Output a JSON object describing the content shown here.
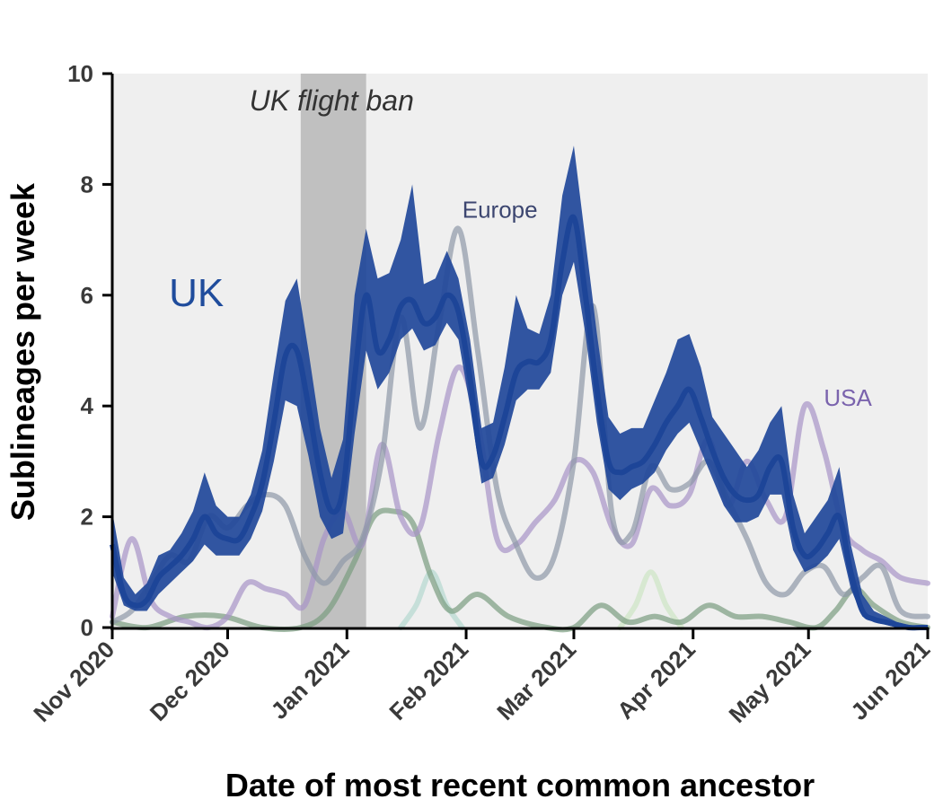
{
  "chart_data": {
    "type": "area",
    "xlabel": "Date of most recent common ancestor",
    "ylabel": "Sublineages per week",
    "xlim": [
      "2020-11-01",
      "2021-06-01"
    ],
    "ylim": [
      0,
      10
    ],
    "yticks": [
      0,
      2,
      4,
      6,
      8,
      10
    ],
    "xticks": [
      {
        "date": "2020-11-01",
        "label": "Nov 2020"
      },
      {
        "date": "2020-12-01",
        "label": "Dec 2020"
      },
      {
        "date": "2021-01-01",
        "label": "Jan 2021"
      },
      {
        "date": "2021-02-01",
        "label": "Feb 2021"
      },
      {
        "date": "2021-03-01",
        "label": "Mar 2021"
      },
      {
        "date": "2021-04-01",
        "label": "Apr 2021"
      },
      {
        "date": "2021-05-01",
        "label": "May 2021"
      },
      {
        "date": "2021-06-01",
        "label": "Jun 2021"
      }
    ],
    "grid": false,
    "background": "#efefef",
    "shaded_region": {
      "start": "2020-12-20",
      "end": "2021-01-06",
      "label": "UK flight ban",
      "color": "#c0c0c0"
    },
    "annotations": [
      {
        "text": "UK",
        "series": "UK",
        "date": "2020-11-30",
        "y": 5.8
      },
      {
        "text": "Europe",
        "series": "Europe",
        "date": "2021-01-31",
        "y": 7.4
      },
      {
        "text": "USA",
        "series": "USA",
        "date": "2021-05-05",
        "y": 4.0
      }
    ],
    "series": [
      {
        "name": "UK",
        "color": "#1f4c9c",
        "band_color": "#21489a",
        "x": [
          "2020-11-01",
          "2020-11-04",
          "2020-11-07",
          "2020-11-10",
          "2020-11-13",
          "2020-11-16",
          "2020-11-19",
          "2020-11-22",
          "2020-11-25",
          "2020-11-28",
          "2020-12-01",
          "2020-12-04",
          "2020-12-07",
          "2020-12-10",
          "2020-12-13",
          "2020-12-16",
          "2020-12-19",
          "2020-12-22",
          "2020-12-25",
          "2020-12-28",
          "2020-12-31",
          "2021-01-03",
          "2021-01-06",
          "2021-01-09",
          "2021-01-12",
          "2021-01-15",
          "2021-01-18",
          "2021-01-21",
          "2021-01-24",
          "2021-01-27",
          "2021-01-30",
          "2021-02-02",
          "2021-02-05",
          "2021-02-08",
          "2021-02-11",
          "2021-02-14",
          "2021-02-17",
          "2021-02-20",
          "2021-02-23",
          "2021-02-26",
          "2021-03-01",
          "2021-03-04",
          "2021-03-07",
          "2021-03-10",
          "2021-03-13",
          "2021-03-16",
          "2021-03-19",
          "2021-03-22",
          "2021-03-25",
          "2021-03-28",
          "2021-03-31",
          "2021-04-03",
          "2021-04-06",
          "2021-04-09",
          "2021-04-12",
          "2021-04-15",
          "2021-04-18",
          "2021-04-21",
          "2021-04-24",
          "2021-04-27",
          "2021-04-30",
          "2021-05-03",
          "2021-05-06",
          "2021-05-09",
          "2021-05-12",
          "2021-05-15",
          "2021-05-18",
          "2021-05-21",
          "2021-05-24",
          "2021-05-27",
          "2021-05-30",
          "2021-06-01"
        ],
        "y": [
          1.5,
          0.6,
          0.4,
          0.5,
          0.9,
          1.1,
          1.3,
          1.6,
          2.0,
          1.7,
          1.6,
          1.6,
          2.0,
          2.6,
          3.7,
          4.9,
          5.0,
          4.0,
          2.8,
          2.1,
          2.5,
          4.5,
          6.0,
          5.0,
          5.2,
          5.8,
          5.9,
          5.5,
          5.6,
          6.0,
          5.7,
          4.5,
          3.0,
          3.1,
          3.8,
          4.6,
          4.8,
          4.8,
          5.2,
          6.6,
          7.4,
          6.0,
          4.3,
          3.0,
          2.8,
          2.9,
          3.0,
          3.3,
          3.7,
          4.0,
          4.3,
          3.8,
          3.2,
          2.7,
          2.4,
          2.3,
          2.4,
          2.9,
          3.0,
          1.8,
          1.3,
          1.4,
          1.7,
          2.0,
          1.0,
          0.3,
          0.15,
          0.1,
          0.05,
          0.0,
          0.0,
          0.0
        ],
        "y_low": [
          1.0,
          0.4,
          0.3,
          0.3,
          0.6,
          0.8,
          1.0,
          1.2,
          1.5,
          1.3,
          1.3,
          1.3,
          1.6,
          2.1,
          3.0,
          4.1,
          4.0,
          3.1,
          2.0,
          1.6,
          1.7,
          3.5,
          5.0,
          4.3,
          4.6,
          5.2,
          5.4,
          5.0,
          5.1,
          5.5,
          5.2,
          4.0,
          2.6,
          2.7,
          3.3,
          4.1,
          4.3,
          4.3,
          4.6,
          6.0,
          6.6,
          5.3,
          3.7,
          2.5,
          2.3,
          2.5,
          2.6,
          2.8,
          3.2,
          3.5,
          3.7,
          3.2,
          2.7,
          2.2,
          1.9,
          1.9,
          2.0,
          2.4,
          2.4,
          1.4,
          1.0,
          1.1,
          1.3,
          1.6,
          0.7,
          0.2,
          0.1,
          0.05,
          0.0,
          0.0,
          0.0,
          0.0
        ],
        "y_high": [
          2.1,
          0.9,
          0.6,
          0.8,
          1.3,
          1.4,
          1.7,
          2.1,
          2.8,
          2.2,
          2.0,
          2.0,
          2.4,
          3.2,
          4.6,
          5.9,
          6.3,
          5.0,
          3.6,
          2.7,
          3.4,
          6.0,
          7.2,
          6.3,
          6.4,
          7.0,
          8.0,
          6.2,
          6.3,
          6.8,
          6.3,
          5.2,
          3.6,
          3.7,
          4.7,
          6.0,
          5.4,
          5.3,
          6.0,
          7.8,
          8.7,
          7.0,
          5.3,
          3.8,
          3.5,
          3.6,
          3.6,
          4.1,
          4.6,
          5.2,
          5.3,
          4.7,
          3.8,
          3.5,
          3.2,
          2.9,
          3.2,
          3.7,
          4.0,
          2.4,
          1.7,
          2.0,
          2.3,
          2.9,
          1.5,
          0.6,
          0.3,
          0.2,
          0.1,
          0.05,
          0.02,
          0.0
        ]
      },
      {
        "name": "Europe",
        "color": "#8f98a8",
        "x": [
          "2020-11-01",
          "2020-11-06",
          "2020-11-11",
          "2020-11-16",
          "2020-11-21",
          "2020-11-26",
          "2020-12-01",
          "2020-12-06",
          "2020-12-11",
          "2020-12-16",
          "2020-12-21",
          "2020-12-26",
          "2020-12-31",
          "2021-01-05",
          "2021-01-10",
          "2021-01-15",
          "2021-01-20",
          "2021-01-25",
          "2021-01-30",
          "2021-02-04",
          "2021-02-09",
          "2021-02-14",
          "2021-02-19",
          "2021-02-24",
          "2021-03-01",
          "2021-03-06",
          "2021-03-11",
          "2021-03-16",
          "2021-03-21",
          "2021-03-26",
          "2021-03-31",
          "2021-04-05",
          "2021-04-10",
          "2021-04-15",
          "2021-04-20",
          "2021-04-25",
          "2021-04-30",
          "2021-05-05",
          "2021-05-10",
          "2021-05-15",
          "2021-05-20",
          "2021-05-25",
          "2021-06-01"
        ],
        "y": [
          0.1,
          0.3,
          0.8,
          1.3,
          1.2,
          2.0,
          1.8,
          2.2,
          2.4,
          2.2,
          1.3,
          0.8,
          1.2,
          1.6,
          3.0,
          5.6,
          3.6,
          5.5,
          7.2,
          5.0,
          2.5,
          1.5,
          0.9,
          1.3,
          3.0,
          5.8,
          2.0,
          1.7,
          2.9,
          2.5,
          2.6,
          3.0,
          2.3,
          1.6,
          0.8,
          0.6,
          1.0,
          1.1,
          0.6,
          0.9,
          1.1,
          0.3,
          0.2
        ]
      },
      {
        "name": "USA",
        "color": "#a894c8",
        "x": [
          "2020-11-01",
          "2020-11-06",
          "2020-11-11",
          "2020-11-16",
          "2020-11-21",
          "2020-11-26",
          "2020-12-01",
          "2020-12-06",
          "2020-12-11",
          "2020-12-16",
          "2020-12-21",
          "2020-12-26",
          "2020-12-31",
          "2021-01-05",
          "2021-01-10",
          "2021-01-15",
          "2021-01-20",
          "2021-01-25",
          "2021-01-30",
          "2021-02-04",
          "2021-02-09",
          "2021-02-14",
          "2021-02-19",
          "2021-02-24",
          "2021-03-01",
          "2021-03-06",
          "2021-03-11",
          "2021-03-16",
          "2021-03-21",
          "2021-03-26",
          "2021-03-31",
          "2021-04-05",
          "2021-04-10",
          "2021-04-15",
          "2021-04-20",
          "2021-04-25",
          "2021-04-30",
          "2021-05-05",
          "2021-05-10",
          "2021-05-15",
          "2021-05-20",
          "2021-05-25",
          "2021-06-01"
        ],
        "y": [
          0.2,
          1.6,
          0.5,
          0.2,
          0.1,
          0.0,
          0.2,
          0.8,
          0.7,
          0.6,
          0.4,
          1.6,
          2.1,
          1.5,
          3.3,
          2.0,
          1.8,
          3.5,
          4.7,
          3.7,
          1.6,
          1.5,
          1.9,
          2.3,
          3.0,
          2.8,
          1.8,
          1.5,
          2.5,
          2.2,
          2.4,
          3.4,
          2.2,
          3.0,
          2.3,
          2.0,
          4.0,
          3.2,
          1.8,
          1.4,
          1.2,
          0.9,
          0.8
        ]
      },
      {
        "name": "series-green",
        "color": "#7a9c80",
        "x": [
          "2020-11-01",
          "2020-11-10",
          "2020-11-20",
          "2020-11-30",
          "2020-12-10",
          "2020-12-20",
          "2020-12-27",
          "2021-01-03",
          "2021-01-08",
          "2021-01-13",
          "2021-01-18",
          "2021-01-23",
          "2021-01-28",
          "2021-02-04",
          "2021-02-12",
          "2021-02-22",
          "2021-03-01",
          "2021-03-08",
          "2021-03-15",
          "2021-03-22",
          "2021-03-29",
          "2021-04-05",
          "2021-04-12",
          "2021-04-19",
          "2021-04-26",
          "2021-05-03",
          "2021-05-08",
          "2021-05-13",
          "2021-05-18",
          "2021-05-25",
          "2021-06-01"
        ],
        "y": [
          0.1,
          0.0,
          0.2,
          0.2,
          0.0,
          0.0,
          0.3,
          1.2,
          2.0,
          2.1,
          1.9,
          0.9,
          0.3,
          0.6,
          0.2,
          0.0,
          0.0,
          0.4,
          0.1,
          0.2,
          0.1,
          0.4,
          0.2,
          0.2,
          0.1,
          0.0,
          0.3,
          0.7,
          0.4,
          0.1,
          0.0
        ]
      },
      {
        "name": "series-teal",
        "color": "#b5d8d0",
        "x": [
          "2021-01-15",
          "2021-01-19",
          "2021-01-23",
          "2021-01-27",
          "2021-01-31"
        ],
        "y": [
          0.0,
          0.4,
          1.0,
          0.4,
          0.0
        ]
      },
      {
        "name": "series-lightgreen",
        "color": "#cde6c4",
        "x": [
          "2021-03-13",
          "2021-03-17",
          "2021-03-21",
          "2021-03-25",
          "2021-03-29"
        ],
        "y": [
          0.0,
          0.4,
          1.0,
          0.4,
          0.0
        ]
      }
    ]
  }
}
